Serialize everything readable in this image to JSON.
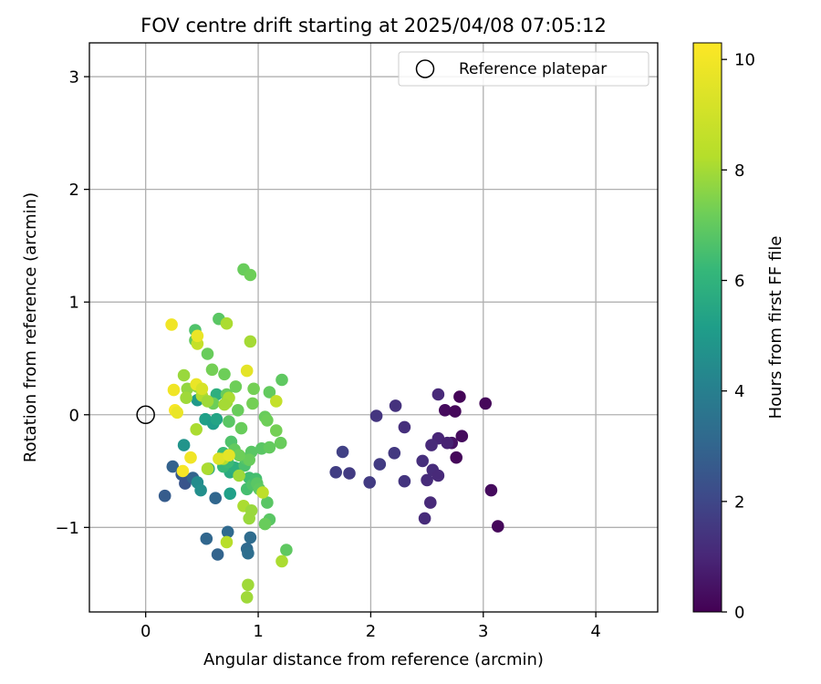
{
  "chart_data": {
    "type": "scatter",
    "title": "FOV centre drift starting at 2025/04/08 07:05:12",
    "xlabel": "Angular distance from reference (arcmin)",
    "ylabel": "Rotation from reference (arcmin)",
    "xlim": [
      -0.5,
      4.55
    ],
    "ylim": [
      -1.75,
      3.3
    ],
    "xticks": [
      0,
      1,
      2,
      3,
      4
    ],
    "xtick_labels": [
      "0",
      "1",
      "2",
      "3",
      "4"
    ],
    "yticks": [
      -1,
      0,
      1,
      2,
      3
    ],
    "ytick_labels": [
      "−1",
      "0",
      "1",
      "2",
      "3"
    ],
    "grid": true,
    "legend": {
      "placement": "top-right",
      "entries": [
        "Reference platepar"
      ]
    },
    "reference_point": {
      "name": "Reference platepar",
      "x": 0,
      "y": 0
    },
    "colorbar": {
      "label": "Hours from first FF file",
      "colormap": "viridis",
      "range": [
        0,
        10.3
      ],
      "ticks": [
        0,
        2,
        4,
        6,
        8,
        10
      ],
      "tick_labels": [
        "0",
        "2",
        "4",
        "6",
        "8",
        "10"
      ]
    },
    "series": [
      {
        "columns": [
          "x",
          "y",
          "hours"
        ],
        "points": [
          [
            2.66,
            0.04,
            0.3
          ],
          [
            2.75,
            0.03,
            0.2
          ],
          [
            2.79,
            0.16,
            0.1
          ],
          [
            3.02,
            0.1,
            0.2
          ],
          [
            2.81,
            -0.19,
            0.3
          ],
          [
            2.76,
            -0.38,
            0.2
          ],
          [
            2.72,
            -0.25,
            0.5
          ],
          [
            3.07,
            -0.67,
            0.3
          ],
          [
            3.13,
            -0.99,
            0.2
          ],
          [
            2.6,
            0.18,
            1.2
          ],
          [
            2.22,
            0.08,
            1.5
          ],
          [
            2.05,
            -0.01,
            1.6
          ],
          [
            2.3,
            -0.11,
            1.4
          ],
          [
            2.6,
            -0.21,
            1.1
          ],
          [
            2.54,
            -0.27,
            1.2
          ],
          [
            2.68,
            -0.25,
            1.0
          ],
          [
            2.46,
            -0.41,
            1.4
          ],
          [
            2.55,
            -0.49,
            1.3
          ],
          [
            2.6,
            -0.54,
            1.2
          ],
          [
            2.5,
            -0.58,
            1.3
          ],
          [
            2.53,
            -0.78,
            1.2
          ],
          [
            2.48,
            -0.92,
            1.3
          ],
          [
            2.21,
            -0.34,
            1.7
          ],
          [
            2.3,
            -0.59,
            1.6
          ],
          [
            2.08,
            -0.44,
            1.8
          ],
          [
            1.99,
            -0.6,
            1.8
          ],
          [
            1.81,
            -0.52,
            1.8
          ],
          [
            1.75,
            -0.33,
            2.0
          ],
          [
            1.69,
            -0.51,
            1.9
          ],
          [
            0.17,
            -0.72,
            3.0
          ],
          [
            0.24,
            -0.46,
            3.2
          ],
          [
            0.32,
            -0.53,
            2.9
          ],
          [
            0.35,
            -0.61,
            2.7
          ],
          [
            0.42,
            -0.56,
            3.3
          ],
          [
            0.62,
            -0.74,
            3.4
          ],
          [
            0.54,
            -1.1,
            3.4
          ],
          [
            0.64,
            -1.24,
            3.3
          ],
          [
            0.73,
            -1.04,
            3.5
          ],
          [
            0.9,
            -1.19,
            3.5
          ],
          [
            0.93,
            -1.09,
            3.6
          ],
          [
            0.91,
            -1.23,
            3.7
          ],
          [
            0.34,
            -0.27,
            5.3
          ],
          [
            0.46,
            -0.6,
            5.0
          ],
          [
            0.49,
            -0.67,
            5.1
          ],
          [
            0.46,
            0.13,
            5.5
          ],
          [
            0.53,
            -0.04,
            5.8
          ],
          [
            0.6,
            -0.08,
            5.7
          ],
          [
            0.63,
            -0.04,
            6.0
          ],
          [
            0.63,
            0.18,
            6.5
          ],
          [
            0.56,
            -0.48,
            6.1
          ],
          [
            0.75,
            -0.7,
            5.8
          ],
          [
            0.75,
            -0.51,
            6.3
          ],
          [
            0.82,
            -0.48,
            6.6
          ],
          [
            0.79,
            -0.47,
            6.5
          ],
          [
            0.69,
            -0.46,
            6.9
          ],
          [
            0.44,
            0.66,
            7.8
          ],
          [
            0.44,
            0.75,
            7.4
          ],
          [
            0.65,
            0.85,
            7.6
          ],
          [
            0.55,
            0.54,
            7.9
          ],
          [
            0.7,
            0.36,
            8.0
          ],
          [
            0.59,
            0.4,
            8.1
          ],
          [
            0.8,
            0.25,
            8.0
          ],
          [
            0.6,
            0.1,
            8.0
          ],
          [
            0.72,
            0.18,
            7.9
          ],
          [
            0.74,
            -0.06,
            7.6
          ],
          [
            0.69,
            -0.34,
            7.0
          ],
          [
            0.73,
            -0.42,
            7.0
          ],
          [
            0.76,
            -0.24,
            7.4
          ],
          [
            0.79,
            -0.31,
            7.8
          ],
          [
            0.82,
            0.04,
            7.9
          ],
          [
            0.85,
            -0.12,
            7.9
          ],
          [
            0.88,
            -0.45,
            7.3
          ],
          [
            0.89,
            -0.39,
            7.5
          ],
          [
            0.92,
            -0.56,
            7.1
          ],
          [
            0.94,
            -0.33,
            7.6
          ],
          [
            0.9,
            -0.66,
            7.2
          ],
          [
            0.95,
            -0.62,
            7.4
          ],
          [
            0.98,
            -0.57,
            7.2
          ],
          [
            0.99,
            -0.61,
            7.6
          ],
          [
            1.01,
            -0.66,
            7.7
          ],
          [
            1.03,
            -0.3,
            7.6
          ],
          [
            1.06,
            -0.02,
            7.9
          ],
          [
            1.08,
            -0.05,
            8.0
          ],
          [
            1.1,
            -0.29,
            7.8
          ],
          [
            1.1,
            0.2,
            7.8
          ],
          [
            1.16,
            -0.14,
            8.1
          ],
          [
            1.2,
            -0.25,
            7.9
          ],
          [
            1.21,
            0.31,
            7.7
          ],
          [
            1.08,
            -0.78,
            7.6
          ],
          [
            1.1,
            -0.93,
            7.6
          ],
          [
            1.06,
            -0.97,
            7.9
          ],
          [
            1.25,
            -1.2,
            7.7
          ],
          [
            0.87,
            1.29,
            7.9
          ],
          [
            0.93,
            1.24,
            8.0
          ],
          [
            0.96,
            0.23,
            8.1
          ],
          [
            0.95,
            0.1,
            8.1
          ],
          [
            0.92,
            -0.4,
            7.9
          ],
          [
            0.83,
            -0.36,
            8.0
          ],
          [
            0.37,
            0.23,
            8.6
          ],
          [
            0.36,
            0.15,
            8.8
          ],
          [
            0.46,
            0.25,
            8.6
          ],
          [
            0.5,
            0.17,
            9.1
          ],
          [
            0.55,
            0.12,
            8.8
          ],
          [
            0.72,
            0.11,
            8.7
          ],
          [
            0.74,
            0.15,
            9.0
          ],
          [
            0.7,
            0.09,
            8.9
          ],
          [
            0.72,
            0.81,
            9.0
          ],
          [
            0.46,
            0.63,
            9.4
          ],
          [
            0.93,
            0.65,
            8.9
          ],
          [
            0.34,
            0.35,
            8.7
          ],
          [
            0.45,
            -0.13,
            9.0
          ],
          [
            0.69,
            -0.39,
            9.2
          ],
          [
            0.55,
            -0.48,
            9.0
          ],
          [
            0.83,
            -0.54,
            8.8
          ],
          [
            0.87,
            -0.81,
            9.0
          ],
          [
            0.94,
            -0.85,
            8.7
          ],
          [
            0.92,
            -0.92,
            8.7
          ],
          [
            0.72,
            -1.13,
            9.2
          ],
          [
            1.04,
            -0.69,
            9.3
          ],
          [
            0.91,
            -1.51,
            8.8
          ],
          [
            0.9,
            -1.62,
            8.8
          ],
          [
            1.21,
            -1.3,
            9.0
          ],
          [
            1.16,
            0.12,
            9.4
          ],
          [
            0.23,
            0.8,
            10.1
          ],
          [
            0.46,
            0.7,
            10.0
          ],
          [
            0.45,
            0.27,
            10.0
          ],
          [
            0.5,
            0.23,
            9.7
          ],
          [
            0.25,
            0.22,
            10.1
          ],
          [
            0.26,
            0.04,
            10.2
          ],
          [
            0.28,
            0.02,
            10.0
          ],
          [
            0.4,
            -0.38,
            10.1
          ],
          [
            0.33,
            -0.5,
            10.2
          ],
          [
            0.65,
            -0.39,
            9.8
          ],
          [
            0.74,
            -0.36,
            9.9
          ],
          [
            0.9,
            0.39,
            9.9
          ]
        ]
      }
    ]
  }
}
